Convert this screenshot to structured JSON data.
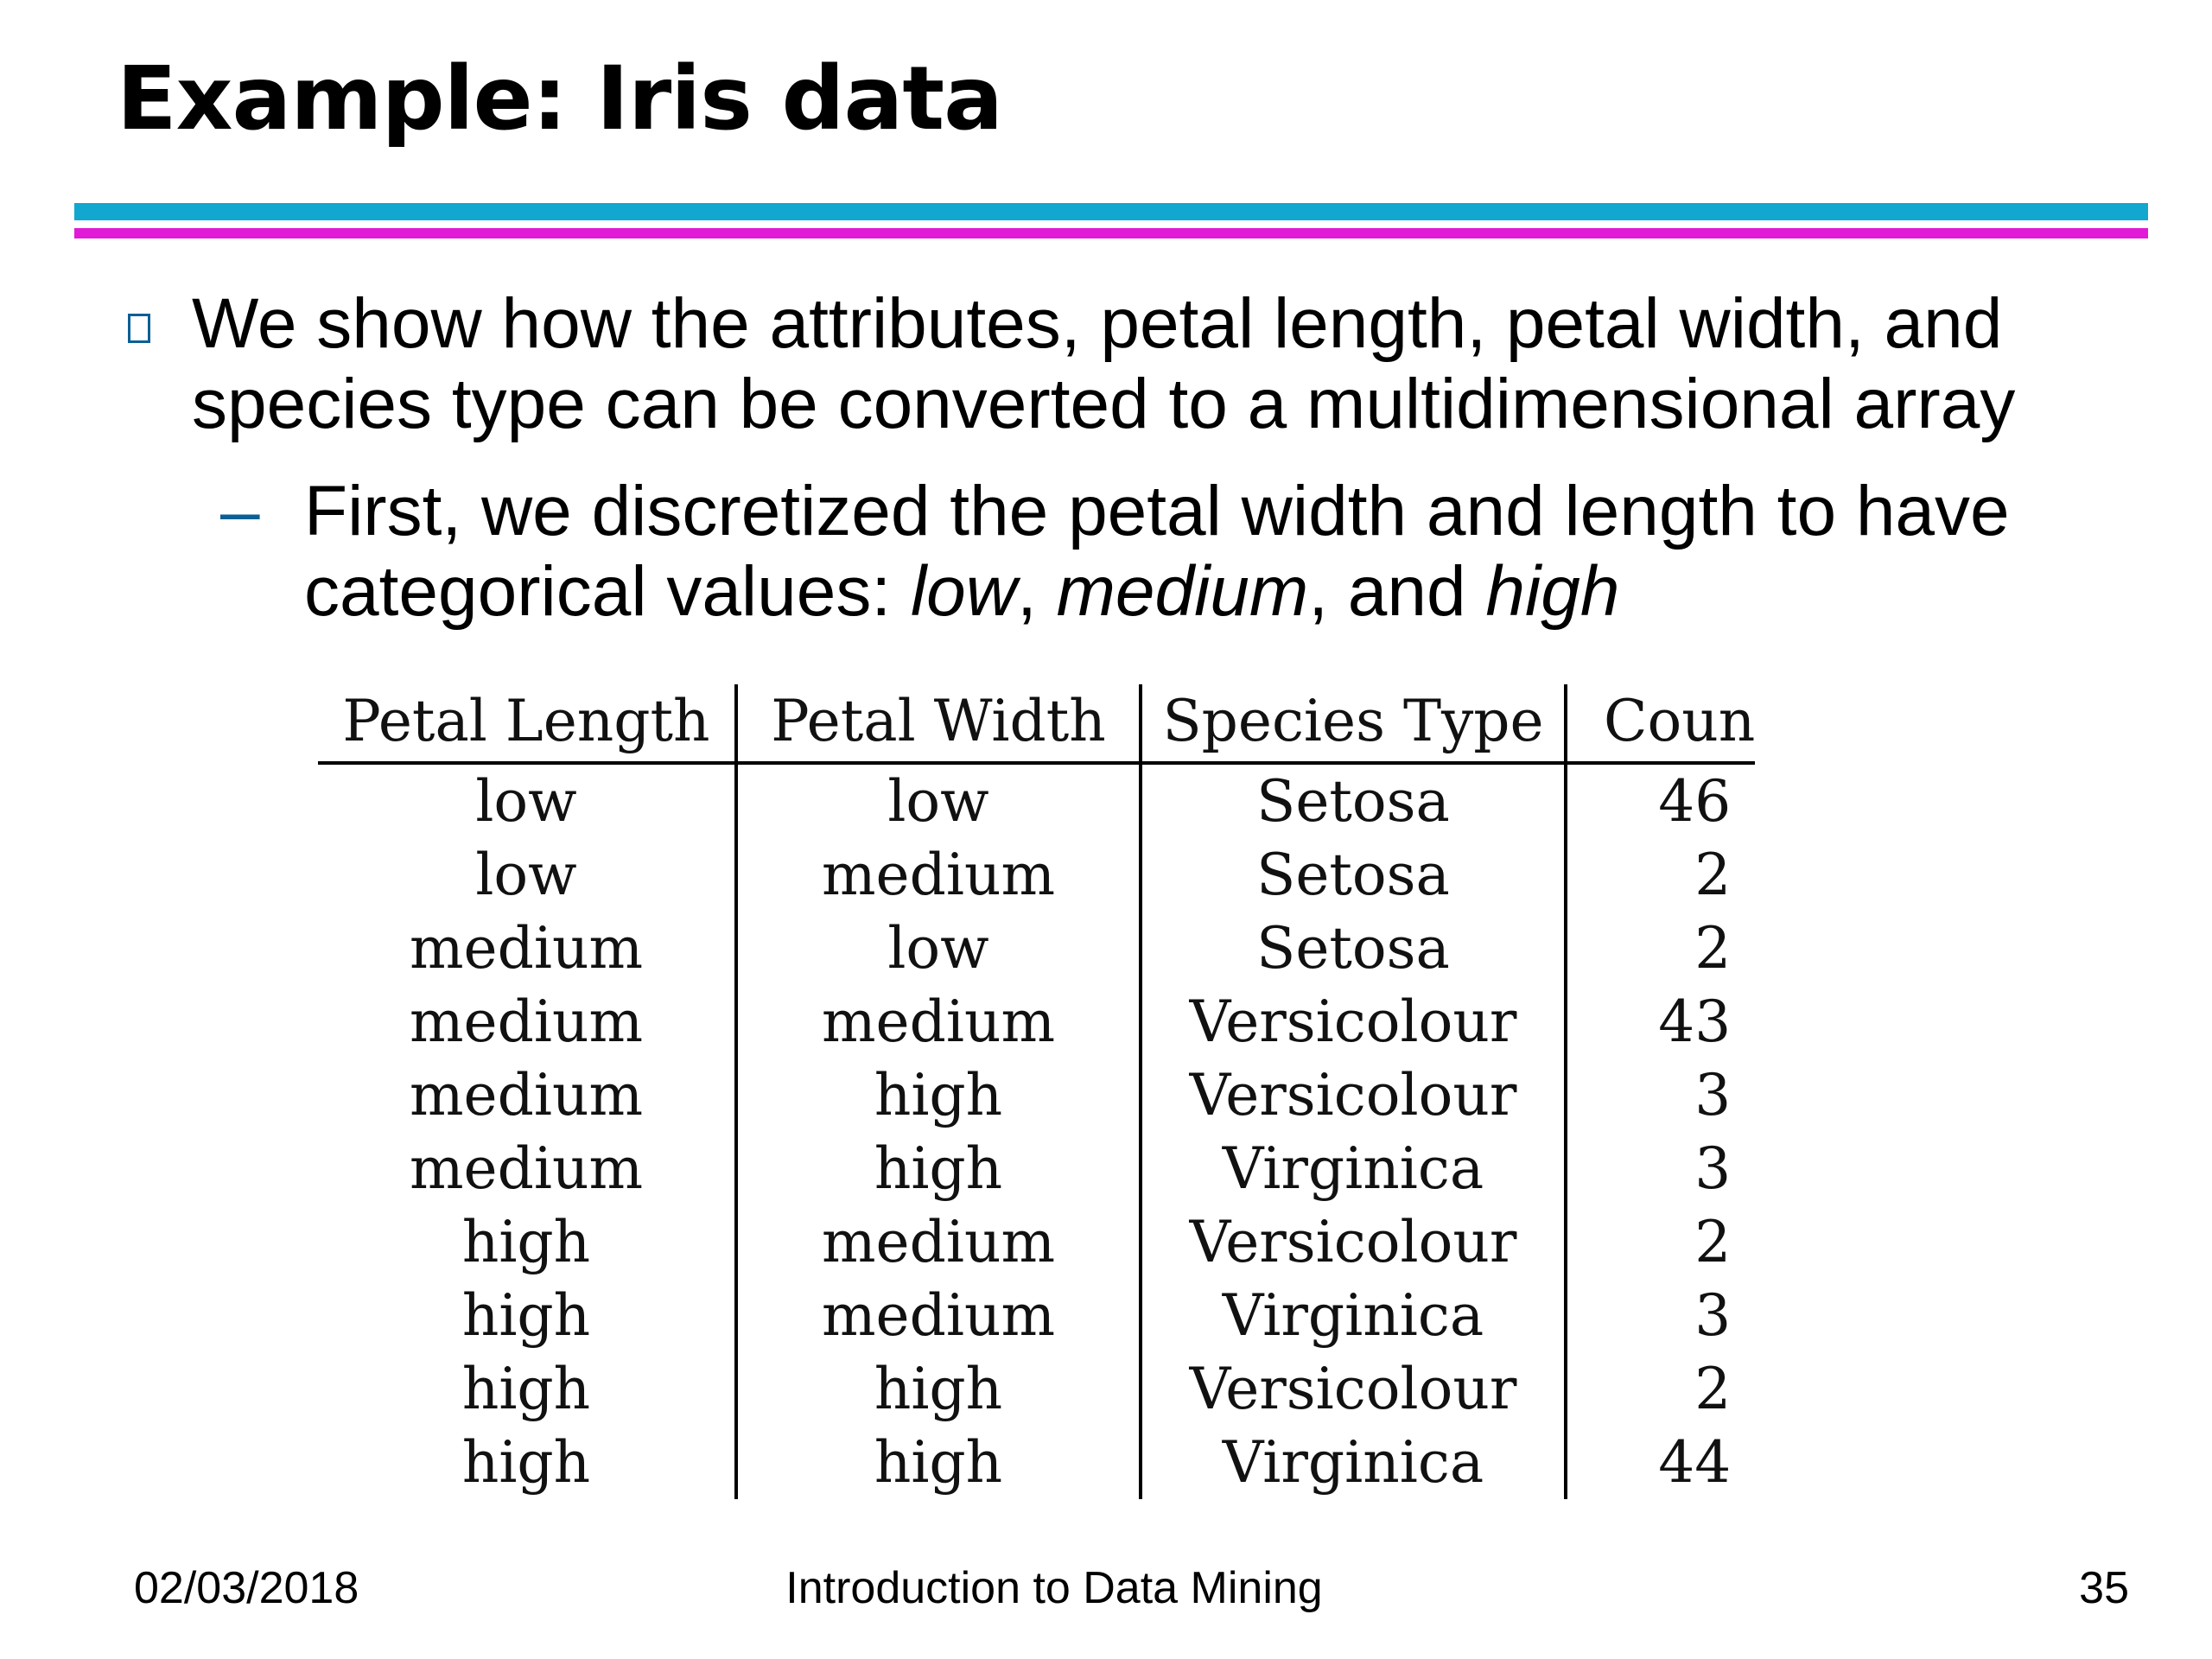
{
  "title": "Example: Iris data",
  "bullet1": "We show how the attributes, petal length, petal width, and species type can be converted to a multidimensional array",
  "sub_bullet": {
    "text_start": "First, we discretized the petal width and length to have categorical values: ",
    "low": "low",
    "comma1": ", ",
    "medium": "medium",
    "and": ", and ",
    "high": "high"
  },
  "table": {
    "headers": [
      "Petal Length",
      "Petal Width",
      "Species Type",
      "Coun"
    ],
    "rows": [
      [
        "low",
        "low",
        "Setosa",
        "46"
      ],
      [
        "low",
        "medium",
        "Setosa",
        "2"
      ],
      [
        "medium",
        "low",
        "Setosa",
        "2"
      ],
      [
        "medium",
        "medium",
        "Versicolour",
        "43"
      ],
      [
        "medium",
        "high",
        "Versicolour",
        "3"
      ],
      [
        "medium",
        "high",
        "Virginica",
        "3"
      ],
      [
        "high",
        "medium",
        "Versicolour",
        "2"
      ],
      [
        "high",
        "medium",
        "Virginica",
        "3"
      ],
      [
        "high",
        "high",
        "Versicolour",
        "2"
      ],
      [
        "high",
        "high",
        "Virginica",
        "44"
      ]
    ]
  },
  "footer": {
    "date": "02/03/2018",
    "course": "Introduction to Data Mining",
    "page": "35"
  },
  "colors": {
    "rule_cyan": "#12a7cf",
    "rule_magenta": "#e01ad6",
    "bullet": "#0b5f95"
  }
}
